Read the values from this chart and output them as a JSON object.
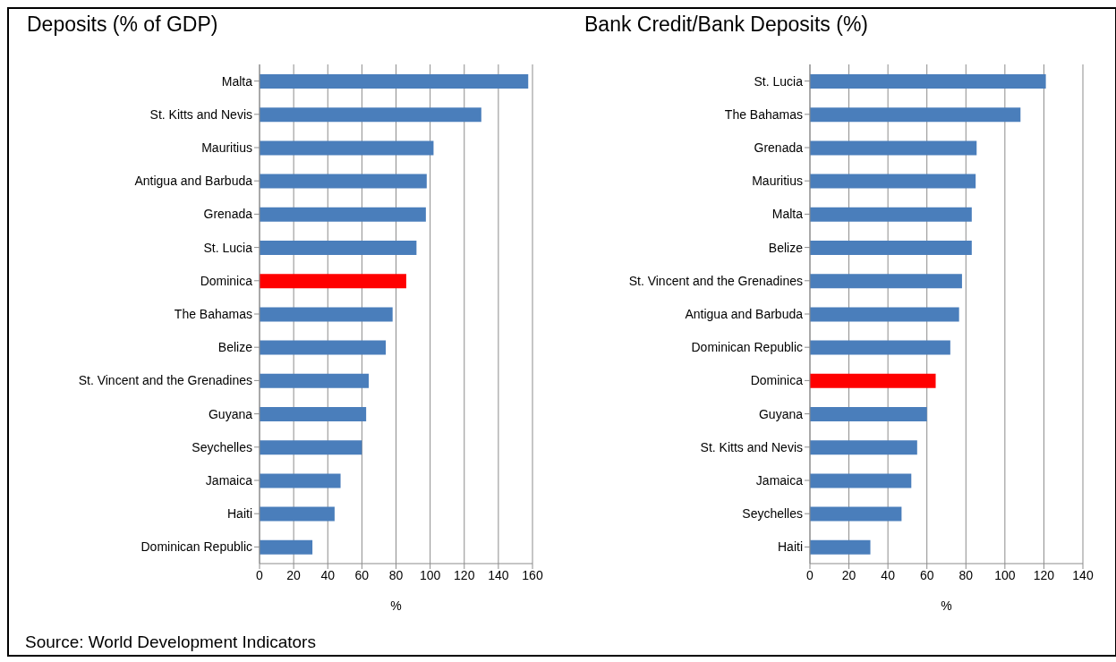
{
  "chart_data": [
    {
      "type": "bar",
      "orientation": "horizontal",
      "title": "Deposits (% of GDP)",
      "xlabel": "%",
      "categories": [
        "Malta",
        "St. Kitts and Nevis",
        "Mauritius",
        "Antigua and Barbuda",
        "Grenada",
        "St. Lucia",
        "Dominica",
        "The Bahamas",
        "Belize",
        "St. Vincent and the Grenadines",
        "Guyana",
        "Seychelles",
        "Jamaica",
        "Haiti",
        "Dominican Republic"
      ],
      "values": [
        157.5,
        130,
        102,
        98,
        97.5,
        92,
        86,
        78,
        74,
        64,
        62.5,
        60,
        47.5,
        44,
        31
      ],
      "colors": [
        "#4a7ebb",
        "#4a7ebb",
        "#4a7ebb",
        "#4a7ebb",
        "#4a7ebb",
        "#4a7ebb",
        "#ff0000",
        "#4a7ebb",
        "#4a7ebb",
        "#4a7ebb",
        "#4a7ebb",
        "#4a7ebb",
        "#4a7ebb",
        "#4a7ebb",
        "#4a7ebb"
      ],
      "xlim": [
        0,
        160
      ],
      "xticks": [
        0,
        20,
        40,
        60,
        80,
        100,
        120,
        140,
        160
      ],
      "grid": "x",
      "annotations": [
        "Source: World Development Indicators"
      ]
    },
    {
      "type": "bar",
      "orientation": "horizontal",
      "title": "Bank Credit/Bank Deposits (%)",
      "xlabel": "%",
      "categories": [
        "St. Lucia",
        "The Bahamas",
        "Grenada",
        "Mauritius",
        "Malta",
        "Belize",
        "St. Vincent and the Grenadines",
        "Antigua and Barbuda",
        "Dominican Republic",
        "Dominica",
        "Guyana",
        "St. Kitts and Nevis",
        "Jamaica",
        "Seychelles",
        "Haiti"
      ],
      "values": [
        121,
        108,
        85.5,
        85,
        83,
        83,
        78,
        76.5,
        72,
        64.5,
        60,
        55,
        52,
        47,
        31
      ],
      "colors": [
        "#4a7ebb",
        "#4a7ebb",
        "#4a7ebb",
        "#4a7ebb",
        "#4a7ebb",
        "#4a7ebb",
        "#4a7ebb",
        "#4a7ebb",
        "#4a7ebb",
        "#ff0000",
        "#4a7ebb",
        "#4a7ebb",
        "#4a7ebb",
        "#4a7ebb",
        "#4a7ebb"
      ],
      "xlim": [
        0,
        140
      ],
      "xticks": [
        0,
        20,
        40,
        60,
        80,
        100,
        120,
        140
      ],
      "grid": "x"
    }
  ]
}
